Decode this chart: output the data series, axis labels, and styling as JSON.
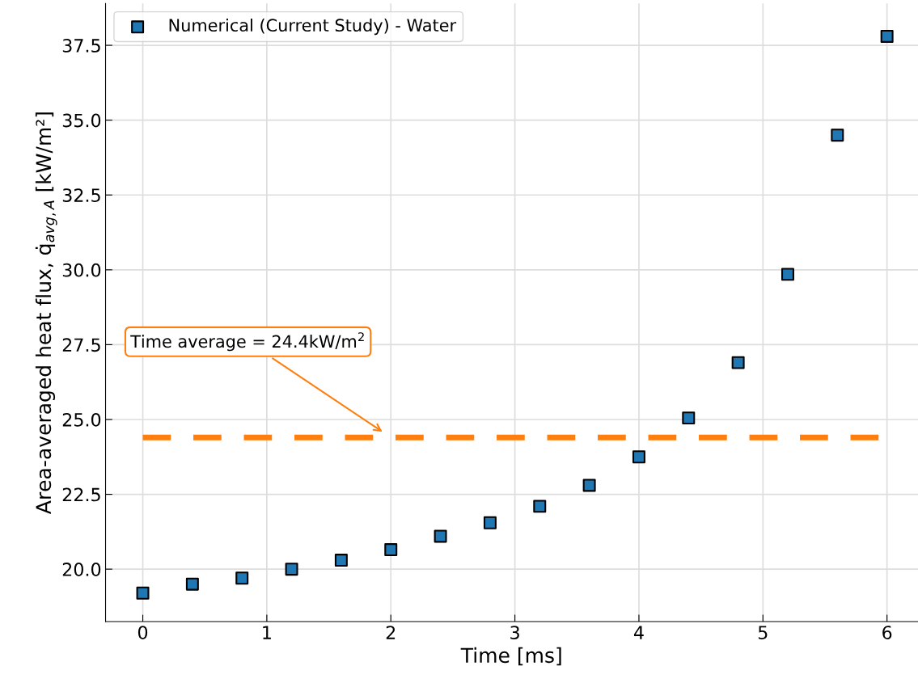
{
  "chart_data": {
    "type": "scatter",
    "xlabel": "Time [ms]",
    "ylabel": "Area-averaged heat flux, q̇$_{avg,A}$ [kW/m²]",
    "x": [
      0,
      0.4,
      0.8,
      1.2,
      1.6,
      2.0,
      2.4,
      2.8,
      3.2,
      3.6,
      4.0,
      4.4,
      4.8,
      5.2,
      5.6,
      6.0
    ],
    "series": [
      {
        "name": "Numerical (Current Study) - Water",
        "color": "#1f77b4",
        "values": [
          19.2,
          19.5,
          19.7,
          20.0,
          20.3,
          20.65,
          21.1,
          21.55,
          22.1,
          22.8,
          23.75,
          25.05,
          26.9,
          29.85,
          34.5,
          37.8
        ]
      }
    ],
    "marker": "square",
    "xlim": [
      -0.3,
      6.25
    ],
    "ylim": [
      18.25,
      38.9
    ],
    "xticks": [
      0,
      1,
      2,
      3,
      4,
      5,
      6
    ],
    "yticks": [
      {
        "value": 20,
        "label": "20.0"
      },
      22.5,
      {
        "value": 25,
        "label": "25.0"
      },
      27.5,
      {
        "value": 30,
        "label": "30.0"
      },
      32.5,
      {
        "value": 35,
        "label": "35.0"
      },
      37.5
    ],
    "ref_lines": [
      {
        "axis": "y",
        "value": 24.4,
        "color": "#ff7f0e",
        "line_style": "dashed"
      }
    ],
    "annotations": [
      "Time average = 24.4kW/m$^{2}$"
    ],
    "grid": true,
    "legend": "top left"
  }
}
